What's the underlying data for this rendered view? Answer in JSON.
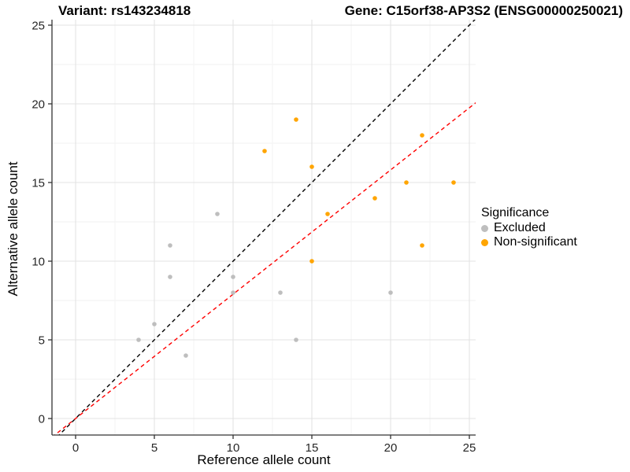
{
  "title_left": "Variant: rs143234818",
  "title_right": "Gene: C15orf38-AP3S2 (ENSG00000250021)",
  "legend": {
    "title": "Significance",
    "items": [
      {
        "label": "Excluded",
        "color": "#BEBEBE"
      },
      {
        "label": "Non-significant",
        "color": "#FFA500"
      }
    ]
  },
  "chart_data": {
    "type": "scatter",
    "title": "",
    "xlabel": "Reference allele count",
    "ylabel": "Alternative allele count",
    "xlim": [
      0,
      25
    ],
    "ylim": [
      0,
      25
    ],
    "x_ticks": [
      0,
      5,
      10,
      15,
      20,
      25
    ],
    "y_ticks": [
      0,
      5,
      10,
      15,
      20,
      25
    ],
    "grid": "major+minor",
    "legend_position": "right",
    "colors": {
      "major_grid": "#E3E3E3",
      "minor_grid": "#F2F2F2",
      "axis": "#333333",
      "identity_line": "#000000",
      "ratio_line": "#FF0000"
    },
    "series": [
      {
        "name": "Excluded",
        "color": "#BEBEBE",
        "points": [
          [
            4,
            5
          ],
          [
            5,
            6
          ],
          [
            6,
            9
          ],
          [
            6,
            11
          ],
          [
            7,
            4
          ],
          [
            9,
            13
          ],
          [
            10,
            8
          ],
          [
            10,
            9
          ],
          [
            13,
            8
          ],
          [
            14,
            5
          ],
          [
            20,
            8
          ]
        ]
      },
      {
        "name": "Non-significant",
        "color": "#FFA500",
        "points": [
          [
            12,
            17
          ],
          [
            14,
            19
          ],
          [
            15,
            10
          ],
          [
            15,
            16
          ],
          [
            16,
            13
          ],
          [
            19,
            14
          ],
          [
            21,
            15
          ],
          [
            22,
            11
          ],
          [
            22,
            18
          ],
          [
            24,
            15
          ]
        ]
      }
    ],
    "lines": [
      {
        "name": "identity-line",
        "slope": 1,
        "intercept": 0,
        "style": "dashed"
      },
      {
        "name": "ratio-line",
        "slope": 0.79,
        "intercept": 0,
        "style": "dashed"
      }
    ]
  }
}
